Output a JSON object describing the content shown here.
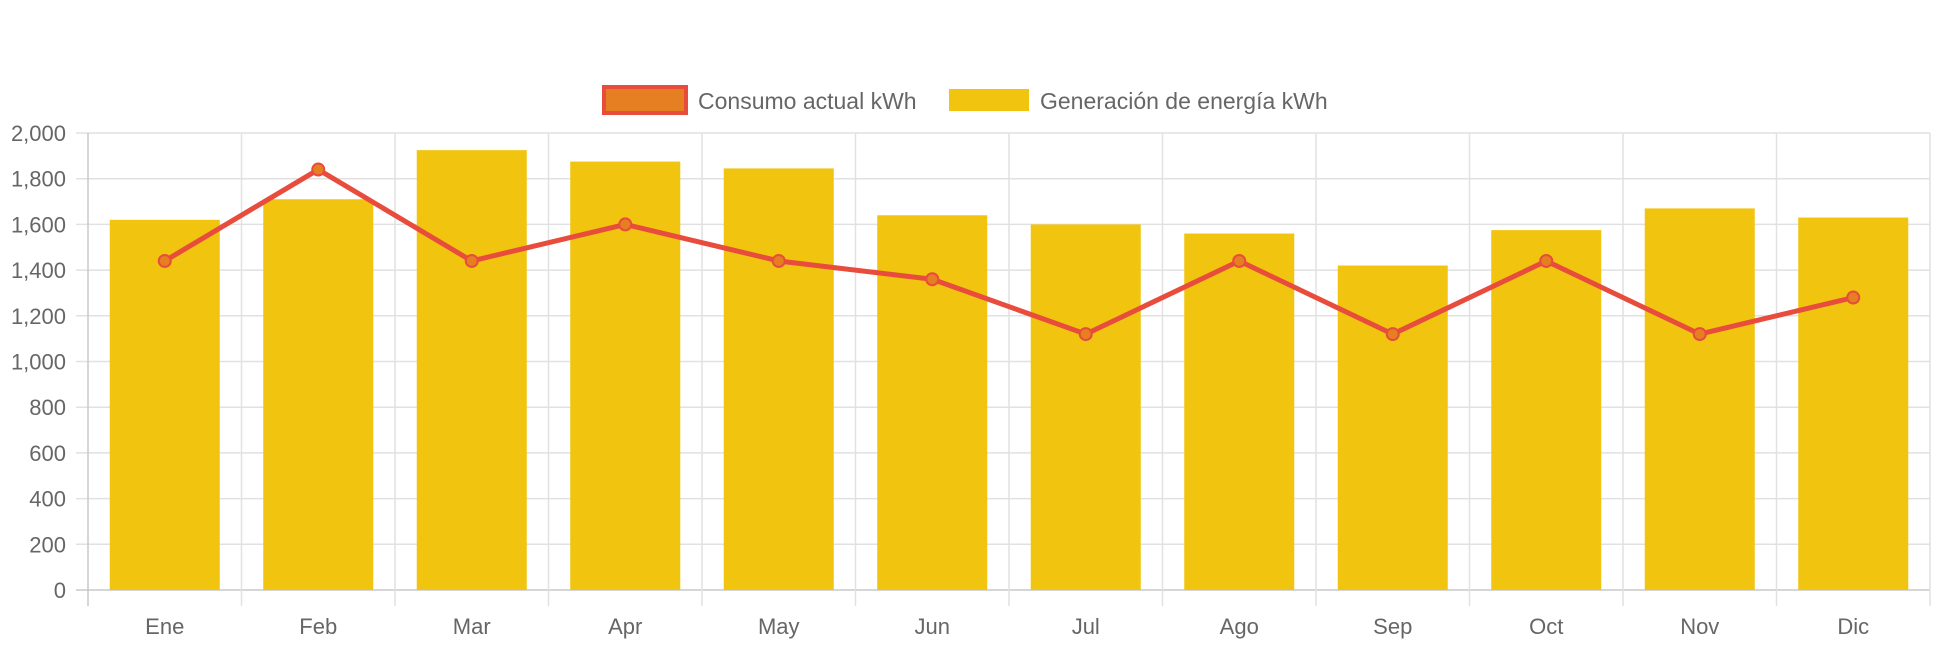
{
  "chart_data": {
    "type": "bar",
    "categories": [
      "Ene",
      "Feb",
      "Mar",
      "Apr",
      "May",
      "Jun",
      "Jul",
      "Ago",
      "Sep",
      "Oct",
      "Nov",
      "Dic"
    ],
    "series": [
      {
        "name": "Consumo actual kWh",
        "type": "line",
        "color": "#e74c3c",
        "point_fill": "#e67e22",
        "values": [
          1440,
          1840,
          1440,
          1600,
          1440,
          1360,
          1120,
          1440,
          1120,
          1440,
          1120,
          1280
        ]
      },
      {
        "name": "Generación de energía kWh",
        "type": "bar",
        "color": "#f1c40f",
        "values": [
          1620,
          1710,
          1925,
          1875,
          1845,
          1640,
          1600,
          1560,
          1420,
          1575,
          1670,
          1630
        ]
      }
    ],
    "ylim": [
      0,
      2000
    ],
    "yticks": [
      "0",
      "200",
      "400",
      "600",
      "800",
      "1,000",
      "1,200",
      "1,400",
      "1,600",
      "1,800",
      "2,000"
    ],
    "grid": true,
    "legend": "top-center"
  }
}
